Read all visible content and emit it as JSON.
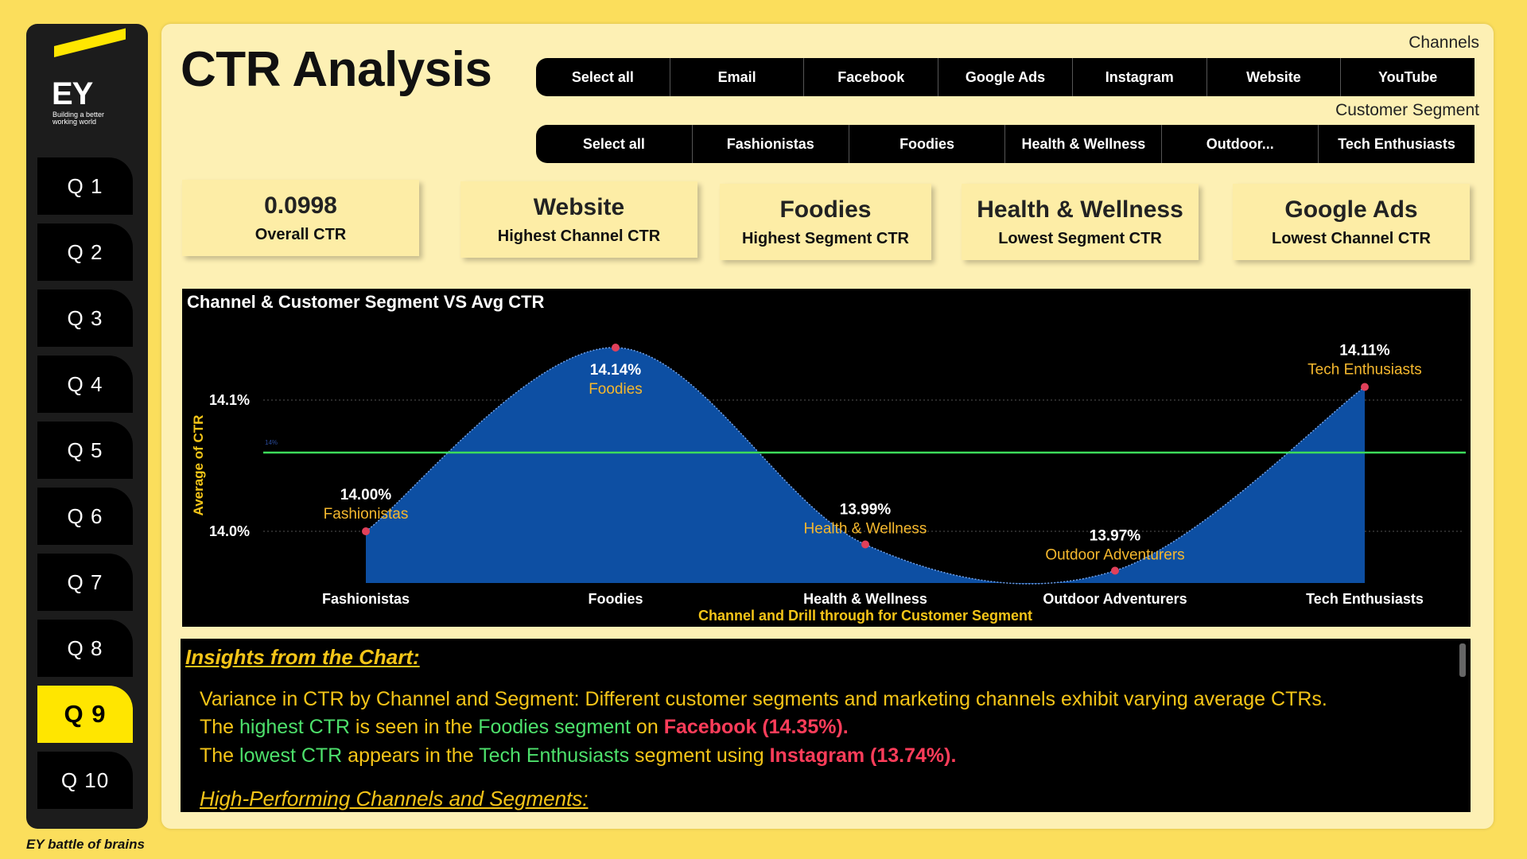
{
  "brand": {
    "logo_text": "EY",
    "tagline": "Building a better working world",
    "footer": "EY battle of brains"
  },
  "nav": {
    "items": [
      "Q 1",
      "Q 2",
      "Q 3",
      "Q 4",
      "Q 5",
      "Q 6",
      "Q 7",
      "Q 8",
      "Q 9",
      "Q 10"
    ],
    "active": "Q 9"
  },
  "page_title": "CTR Analysis",
  "channels_slicer": {
    "label": "Channels",
    "options": [
      "Select all",
      "Email",
      "Facebook",
      "Google Ads",
      "Instagram",
      "Website",
      "YouTube"
    ]
  },
  "segment_slicer": {
    "label": "Customer Segment",
    "options": [
      "Select all",
      "Fashionistas",
      "Foodies",
      "Health & Wellness",
      "Outdoor...",
      "Tech Enthusiasts"
    ]
  },
  "kpis": [
    {
      "value": "0.0998",
      "label": "Overall CTR"
    },
    {
      "value": "Website",
      "label": "Highest Channel CTR"
    },
    {
      "value": "Foodies",
      "label": "Highest Segment CTR"
    },
    {
      "value": "Health & Wellness",
      "label": "Lowest Segment CTR"
    },
    {
      "value": "Google Ads",
      "label": "Lowest Channel CTR"
    }
  ],
  "chart_data": {
    "type": "area",
    "title": "Channel & Customer Segment VS Avg CTR",
    "xlabel": "Channel and Drill through for Customer Segment",
    "ylabel": "Average of CTR",
    "categories": [
      "Fashionistas",
      "Foodies",
      "Health & Wellness",
      "Outdoor Adventurers",
      "Tech Enthusiasts"
    ],
    "values": [
      14.0,
      14.14,
      13.99,
      13.97,
      14.11
    ],
    "value_labels": [
      "14.00%",
      "14.14%",
      "13.99%",
      "13.97%",
      "14.11%"
    ],
    "y_ticks": [
      {
        "value": 14.1,
        "label": "14.1%"
      },
      {
        "value": 14.0,
        "label": "14.0%"
      }
    ],
    "reference_line": {
      "value": 14.06,
      "label": "14%"
    },
    "ylim": [
      13.96,
      14.15
    ],
    "colors": {
      "area": "#0d4fa3",
      "marker": "#e0405a",
      "reference": "#3ddc5b",
      "value_label": "#ffffff",
      "category_label": "#f5b82e"
    }
  },
  "insights": {
    "heading": "Insights from the Chart:",
    "line1": "Variance in CTR by Channel and Segment: Different customer segments and marketing channels exhibit varying average CTRs.",
    "line2": {
      "p1": "The ",
      "p2": "highest CTR",
      "p3": " is seen in the ",
      "p4": "Foodies segment",
      "p5": " on ",
      "p6": "Facebook (14.35%)."
    },
    "line3": {
      "p1": "The ",
      "p2": "lowest CTR",
      "p3": " appears in the ",
      "p4": "Tech Enthusiasts",
      "p5": " segment using ",
      "p6": "Instagram (13.74%)."
    },
    "subheading": "High-Performing Channels and Segments:"
  },
  "colors": {
    "background": "#fbde5c",
    "panel": "#fdf0b4",
    "accent": "#ffe600"
  }
}
